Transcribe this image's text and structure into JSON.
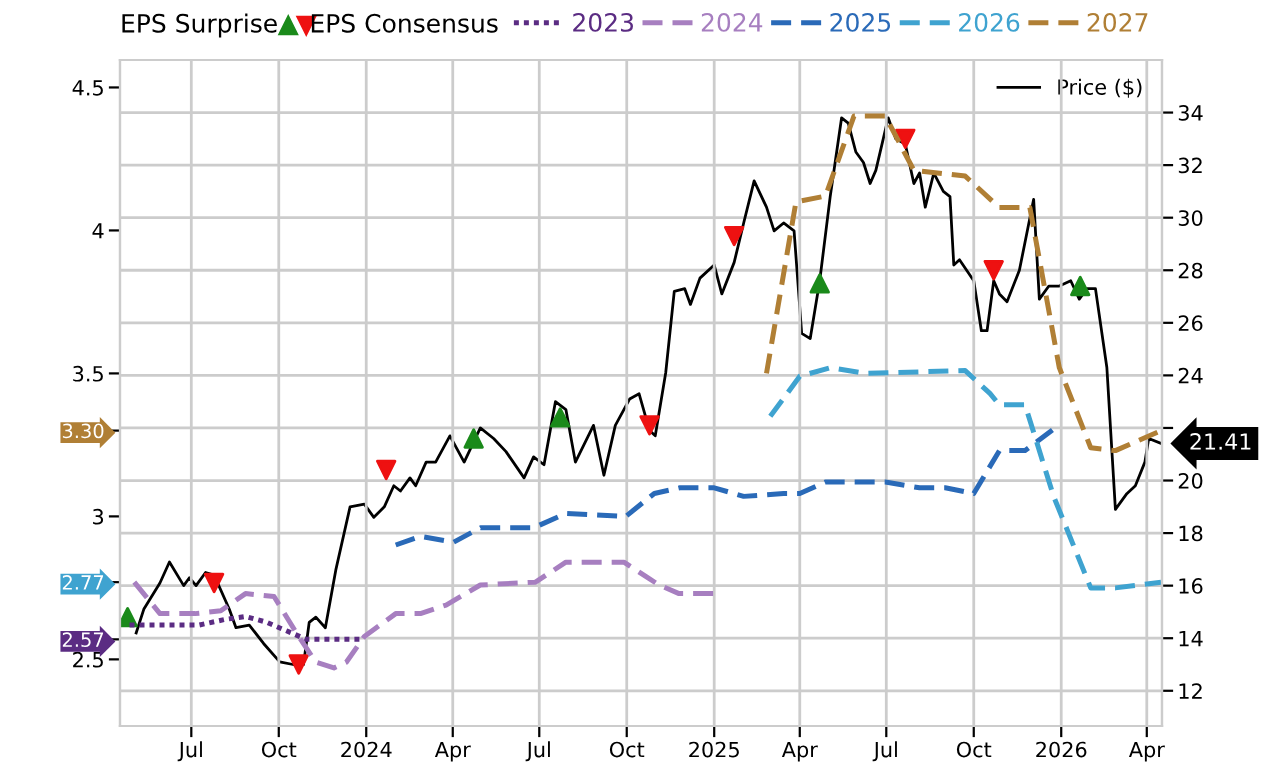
{
  "chart_data": {
    "type": "line",
    "legend_title": "EPS Consensus",
    "annotations": [
      "EPS Surprise"
    ],
    "xlim": [
      "2023-04-17",
      "2026-04-17"
    ],
    "xticks": [
      {
        "value": "2023-07-01",
        "label": "Jul"
      },
      {
        "value": "2023-10-01",
        "label": "Oct"
      },
      {
        "value": "2024-01-01",
        "label": "2024"
      },
      {
        "value": "2024-04-01",
        "label": "Apr"
      },
      {
        "value": "2024-07-01",
        "label": "Jul"
      },
      {
        "value": "2024-10-01",
        "label": "Oct"
      },
      {
        "value": "2025-01-01",
        "label": "2025"
      },
      {
        "value": "2025-04-01",
        "label": "Apr"
      },
      {
        "value": "2025-07-01",
        "label": "Jul"
      },
      {
        "value": "2025-10-01",
        "label": "Oct"
      },
      {
        "value": "2026-01-01",
        "label": "2026"
      },
      {
        "value": "2026-04-01",
        "label": "Apr"
      }
    ],
    "ylim": [
      2.267,
      4.596
    ],
    "yticks": [
      2.5,
      3,
      3.5,
      4,
      4.5,
      {
        "value": 3.3,
        "label": "3.30"
      },
      {
        "value": 2.77,
        "label": "2.77"
      },
      {
        "value": 2.57,
        "label": "2.57"
      }
    ],
    "y2lim": [
      10.66,
      36.0
    ],
    "y2ticks": [
      12,
      14,
      16,
      18,
      20,
      {
        "value": 22,
        "label": null
      },
      24,
      26,
      28,
      30,
      32,
      34
    ],
    "grid": true,
    "legend": "top",
    "series": [
      {
        "name": "2023",
        "color": "#5b2c83",
        "line_style": "dotted",
        "x": [
          "2023-04-27",
          "2023-05-22",
          "2023-07-09",
          "2023-08-06",
          "2023-08-27",
          "2023-09-18",
          "2023-10-09",
          "2023-10-30",
          "2023-11-28",
          "2023-12-26"
        ],
        "values": [
          2.62,
          2.62,
          2.62,
          2.64,
          2.65,
          2.63,
          2.6,
          2.57,
          2.57,
          2.57
        ]
      },
      {
        "name": "2024",
        "color": "#a77fc0",
        "line_style": "dashed",
        "x": [
          "2023-05-02",
          "2023-05-29",
          "2023-07-05",
          "2023-08-01",
          "2023-08-27",
          "2023-09-26",
          "2023-10-20",
          "2023-11-09",
          "2023-11-28",
          "2023-12-11",
          "2023-12-30",
          "2024-02-01",
          "2024-02-27",
          "2024-03-25",
          "2024-04-30",
          "2024-06-27",
          "2024-07-29",
          "2024-09-28",
          "2024-10-21",
          "2024-11-04",
          "2024-11-25",
          "2025-01-01"
        ],
        "values": [
          2.77,
          2.66,
          2.66,
          2.67,
          2.73,
          2.72,
          2.59,
          2.49,
          2.47,
          2.49,
          2.58,
          2.66,
          2.66,
          2.69,
          2.76,
          2.77,
          2.84,
          2.84,
          2.79,
          2.76,
          2.73,
          2.73
        ]
      },
      {
        "name": "2025",
        "color": "#2a6ab8",
        "line_style": "dashed",
        "x": [
          "2024-02-01",
          "2024-02-27",
          "2024-04-02",
          "2024-04-30",
          "2024-06-25",
          "2024-07-29",
          "2024-09-30",
          "2024-10-30",
          "2024-11-26",
          "2025-01-01",
          "2025-02-01",
          "2025-03-15",
          "2025-04-01",
          "2025-04-28",
          "2025-06-30",
          "2025-08-05",
          "2025-09-01",
          "2025-10-01",
          "2025-10-28",
          "2025-11-24",
          "2025-12-30"
        ],
        "values": [
          2.9,
          2.93,
          2.91,
          2.96,
          2.96,
          3.01,
          3.0,
          3.08,
          3.1,
          3.1,
          3.07,
          3.08,
          3.08,
          3.12,
          3.12,
          3.1,
          3.1,
          3.08,
          3.23,
          3.23,
          3.32
        ]
      },
      {
        "name": "2026",
        "color": "#3fa3d0",
        "line_style": "dashed",
        "x": [
          "2025-03-01",
          "2025-04-01",
          "2025-05-03",
          "2025-06-09",
          "2025-09-22",
          "2025-10-18",
          "2025-10-28",
          "2025-11-24",
          "2025-12-24",
          "2026-02-01",
          "2026-02-27",
          "2026-04-16"
        ],
        "values": [
          3.35,
          3.49,
          3.52,
          3.5,
          3.51,
          3.43,
          3.39,
          3.39,
          3.07,
          2.75,
          2.75,
          2.77
        ]
      },
      {
        "name": "2027",
        "color": "#b07f35",
        "line_style": "dashed",
        "x": [
          "2025-02-25",
          "2025-03-28",
          "2025-04-28",
          "2025-05-28",
          "2025-06-30",
          "2025-07-30",
          "2025-09-22",
          "2025-10-28",
          "2025-11-29",
          "2025-12-30",
          "2026-02-01",
          "2026-02-27",
          "2026-04-16"
        ],
        "values": [
          3.5,
          4.1,
          4.12,
          4.4,
          4.4,
          4.21,
          4.19,
          4.08,
          4.08,
          3.52,
          3.24,
          3.23,
          3.3
        ]
      },
      {
        "name": "Price ($)",
        "color": "#000000",
        "axis": "y2",
        "line_style": "solid",
        "x": [
          "2023-05-04",
          "2023-05-12",
          "2023-05-29",
          "2023-06-08",
          "2023-06-23",
          "2023-06-29",
          "2023-07-06",
          "2023-07-16",
          "2023-07-25",
          "2023-08-10",
          "2023-08-17",
          "2023-08-31",
          "2023-09-15",
          "2023-10-02",
          "2023-10-16",
          "2023-10-27",
          "2023-11-02",
          "2023-11-09",
          "2023-11-19",
          "2023-11-30",
          "2023-12-15",
          "2023-12-30",
          "2024-01-09",
          "2024-01-20",
          "2024-01-30",
          "2024-02-06",
          "2024-02-16",
          "2024-02-22",
          "2024-03-04",
          "2024-03-14",
          "2024-03-29",
          "2024-04-13",
          "2024-04-30",
          "2024-05-14",
          "2024-05-27",
          "2024-06-15",
          "2024-06-25",
          "2024-07-06",
          "2024-07-18",
          "2024-07-29",
          "2024-08-08",
          "2024-08-27",
          "2024-09-07",
          "2024-09-19",
          "2024-10-04",
          "2024-10-14",
          "2024-10-25",
          "2024-10-31",
          "2024-11-11",
          "2024-11-20",
          "2024-12-01",
          "2024-12-07",
          "2024-12-17",
          "2025-01-01",
          "2025-01-09",
          "2025-01-22",
          "2025-02-01",
          "2025-02-12",
          "2025-02-25",
          "2025-03-05",
          "2025-03-15",
          "2025-03-26",
          "2025-04-03",
          "2025-04-12",
          "2025-04-22",
          "2025-05-03",
          "2025-05-15",
          "2025-05-22",
          "2025-05-30",
          "2025-06-07",
          "2025-06-14",
          "2025-06-20",
          "2025-07-03",
          "2025-07-11",
          "2025-07-21",
          "2025-07-30",
          "2025-08-05",
          "2025-08-11",
          "2025-08-20",
          "2025-08-30",
          "2025-09-06",
          "2025-09-10",
          "2025-09-16",
          "2025-10-01",
          "2025-10-09",
          "2025-10-15",
          "2025-10-22",
          "2025-10-28",
          "2025-11-05",
          "2025-11-18",
          "2025-12-03",
          "2025-12-09",
          "2025-12-19",
          "2025-12-30",
          "2026-01-11",
          "2026-01-20",
          "2026-01-28",
          "2026-02-06",
          "2026-02-18",
          "2026-02-27",
          "2026-03-11",
          "2026-03-20",
          "2026-03-30",
          "2026-04-03",
          "2026-04-16"
        ],
        "values": [
          14.2,
          15.1,
          16.1,
          16.9,
          16.0,
          16.3,
          16.0,
          16.5,
          16.4,
          15.1,
          14.4,
          14.5,
          13.8,
          13.1,
          13.0,
          13.0,
          14.6,
          14.8,
          14.4,
          16.6,
          19.0,
          19.1,
          18.6,
          19.0,
          19.8,
          19.6,
          20.1,
          19.8,
          20.7,
          20.7,
          21.7,
          20.7,
          22.0,
          21.6,
          21.1,
          20.1,
          20.9,
          20.6,
          23.0,
          22.7,
          20.7,
          22.1,
          20.2,
          22.1,
          23.1,
          23.3,
          21.9,
          21.7,
          24.1,
          27.2,
          27.3,
          26.7,
          27.7,
          28.2,
          27.1,
          28.3,
          29.8,
          31.4,
          30.4,
          29.5,
          29.8,
          29.5,
          25.6,
          25.4,
          27.6,
          30.8,
          33.8,
          33.6,
          32.5,
          32.1,
          31.3,
          31.8,
          33.8,
          33.0,
          32.8,
          31.3,
          31.7,
          30.4,
          31.7,
          31.0,
          30.8,
          28.2,
          28.4,
          27.6,
          25.7,
          25.7,
          27.6,
          27.1,
          26.8,
          28.0,
          30.7,
          26.9,
          27.4,
          27.4,
          27.6,
          26.9,
          27.3,
          27.3,
          24.3,
          18.9,
          19.5,
          19.8,
          20.7,
          21.6,
          21.41
        ],
        "value_labels": [
          null,
          null,
          null,
          null,
          null,
          null,
          null,
          null,
          null,
          null,
          null,
          null,
          null,
          null,
          null,
          null,
          null,
          null,
          null,
          null,
          null,
          null,
          null,
          null,
          null,
          null,
          null,
          null,
          null,
          null,
          null,
          null,
          null,
          null,
          null,
          null,
          null,
          null,
          null,
          null,
          null,
          null,
          null,
          null,
          null,
          null,
          null,
          null,
          null,
          null,
          null,
          null,
          null,
          null,
          null,
          null,
          null,
          null,
          null,
          null,
          null,
          null,
          null,
          null,
          null,
          null,
          null,
          null,
          null,
          null,
          null,
          null,
          null,
          null,
          null,
          null,
          null,
          null,
          null,
          null,
          null,
          null,
          null,
          null,
          null,
          null,
          null,
          null,
          null,
          null,
          null,
          null,
          null,
          null,
          null,
          null,
          null,
          null,
          null,
          null,
          null,
          null,
          null,
          null,
          "21.41"
        ]
      },
      {
        "type": "scatter",
        "color": "#1a8a1a",
        "axis": "y2",
        "marker": "triangle",
        "x": [
          "2023-04-25",
          "2024-04-23",
          "2024-07-23",
          "2025-04-22",
          "2026-01-21"
        ],
        "values": [
          14.8,
          21.6,
          22.4,
          27.5,
          27.4
        ]
      },
      {
        "type": "scatter",
        "color": "#ee1111",
        "axis": "y2",
        "marker": "triangle_down",
        "x": [
          "2023-07-25",
          "2023-10-22",
          "2024-01-22",
          "2024-10-25",
          "2025-01-22",
          "2025-07-21",
          "2025-10-22"
        ],
        "values": [
          16.1,
          13.0,
          20.4,
          22.1,
          29.3,
          33.0,
          28.0
        ]
      }
    ]
  }
}
